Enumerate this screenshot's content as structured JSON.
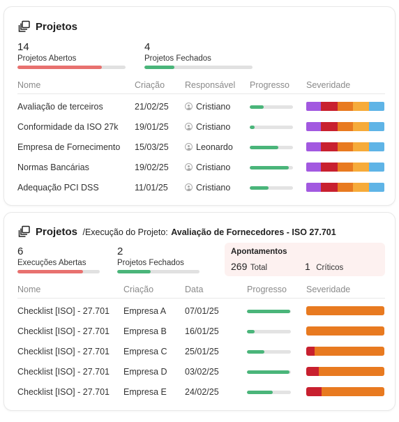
{
  "panel1": {
    "title": "Projetos",
    "stats": [
      {
        "value": "14",
        "label": "Projetos Abertos",
        "progress": 0.78,
        "color": "#e8716f"
      },
      {
        "value": "4",
        "label": "Projetos Fechados",
        "progress": 0.28,
        "color": "#4ab57a"
      }
    ],
    "columns": [
      "Nome",
      "Criação",
      "Responsável",
      "Progresso",
      "Severidade"
    ],
    "rows": [
      {
        "name": "Avaliação de terceiros",
        "created": "21/02/25",
        "owner": "Cristiano",
        "progress": 0.32,
        "severity": [
          0.19,
          0.21,
          0.2,
          0.2,
          0.2
        ]
      },
      {
        "name": "Conformidade da ISO 27k",
        "created": "19/01/25",
        "owner": "Cristiano",
        "progress": 0.12,
        "severity": [
          0.19,
          0.21,
          0.2,
          0.2,
          0.2
        ]
      },
      {
        "name": "Empresa de Fornecimento",
        "created": "15/03/25",
        "owner": "Leonardo",
        "progress": 0.66,
        "severity": [
          0.19,
          0.21,
          0.2,
          0.2,
          0.2
        ]
      },
      {
        "name": "Normas Bancárias",
        "created": "19/02/25",
        "owner": "Cristiano",
        "progress": 0.9,
        "severity": [
          0.19,
          0.21,
          0.2,
          0.2,
          0.2
        ]
      },
      {
        "name": "Adequação PCI DSS",
        "created": "11/01/25",
        "owner": "Cristiano",
        "progress": 0.43,
        "severity": [
          0.19,
          0.21,
          0.2,
          0.2,
          0.2
        ]
      }
    ],
    "severity_colors": [
      "#a259e0",
      "#c8202f",
      "#e87a20",
      "#f6ab3a",
      "#5fb4e6"
    ]
  },
  "panel2": {
    "title": "Projetos",
    "crumb_prefix": "/Execução do Projeto:",
    "crumb_bold": "Avaliação de Fornecedores - ISO 27.701",
    "stats": [
      {
        "value": "6",
        "label": "Execuções Abertas",
        "progress": 0.8,
        "color": "#e8716f"
      },
      {
        "value": "2",
        "label": "Projetos Fechados",
        "progress": 0.41,
        "color": "#4ab57a"
      }
    ],
    "appointments": {
      "title": "Apontamentos",
      "total_value": "269",
      "total_label": "Total",
      "critical_value": "1",
      "critical_label": "Críticos"
    },
    "columns": [
      "Nome",
      "Criação",
      "Data",
      "Progresso",
      "Severidade"
    ],
    "rows": [
      {
        "name": "Checklist [ISO] - 27.701",
        "created": "Empresa A",
        "date": "07/01/25",
        "progress": 0.98,
        "severity": [
          0,
          1.0
        ]
      },
      {
        "name": "Checklist [ISO] - 27.701",
        "created": "Empresa B",
        "date": "16/01/25",
        "progress": 0.18,
        "severity": [
          0,
          1.0
        ]
      },
      {
        "name": "Checklist [ISO] - 27.701",
        "created": "Empresa C",
        "date": "25/01/25",
        "progress": 0.4,
        "severity": [
          0.11,
          0.89
        ]
      },
      {
        "name": "Checklist [ISO] - 27.701",
        "created": "Empresa D",
        "date": "03/02/25",
        "progress": 0.97,
        "severity": [
          0.16,
          0.84
        ]
      },
      {
        "name": "Checklist [ISO] - 27.701",
        "created": "Empresa E",
        "date": "24/02/25",
        "progress": 0.58,
        "severity": [
          0.2,
          0.8
        ]
      }
    ],
    "severity_colors": [
      "#c8202f",
      "#e87a20"
    ]
  }
}
